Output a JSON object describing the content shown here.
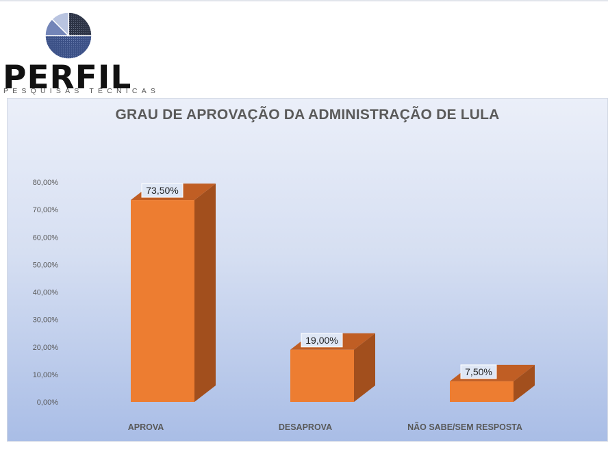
{
  "logo": {
    "brand": "PERFIL",
    "tagline": "PESQUISAS TÉCNICAS",
    "icon": "pie-chart-logo-icon"
  },
  "colors": {
    "bar_front": "#ED7D31",
    "bar_side": "#A24F1D",
    "bar_top": "#C05E24",
    "panel_top": "#EBEFF9",
    "panel_bottom": "#A9BDE6",
    "text": "#595959"
  },
  "chart_data": {
    "type": "bar",
    "title": "GRAU DE APROVAÇÃO DA ADMINISTRAÇÃO DE LULA",
    "categories": [
      "APROVA",
      "DESAPROVA",
      "NÃO SABE/SEM RESPOSTA"
    ],
    "values": [
      73.5,
      19.0,
      7.5
    ],
    "data_labels": [
      "73,50%",
      "19,00%",
      "7,50%"
    ],
    "ylim": [
      0,
      80
    ],
    "yticks": [
      0,
      10,
      20,
      30,
      40,
      50,
      60,
      70,
      80
    ],
    "ytick_labels": [
      "0,00%",
      "10,00%",
      "20,00%",
      "30,00%",
      "40,00%",
      "50,00%",
      "60,00%",
      "70,00%",
      "80,00%"
    ],
    "style": "3d-column",
    "grid": false,
    "legend": "none"
  }
}
